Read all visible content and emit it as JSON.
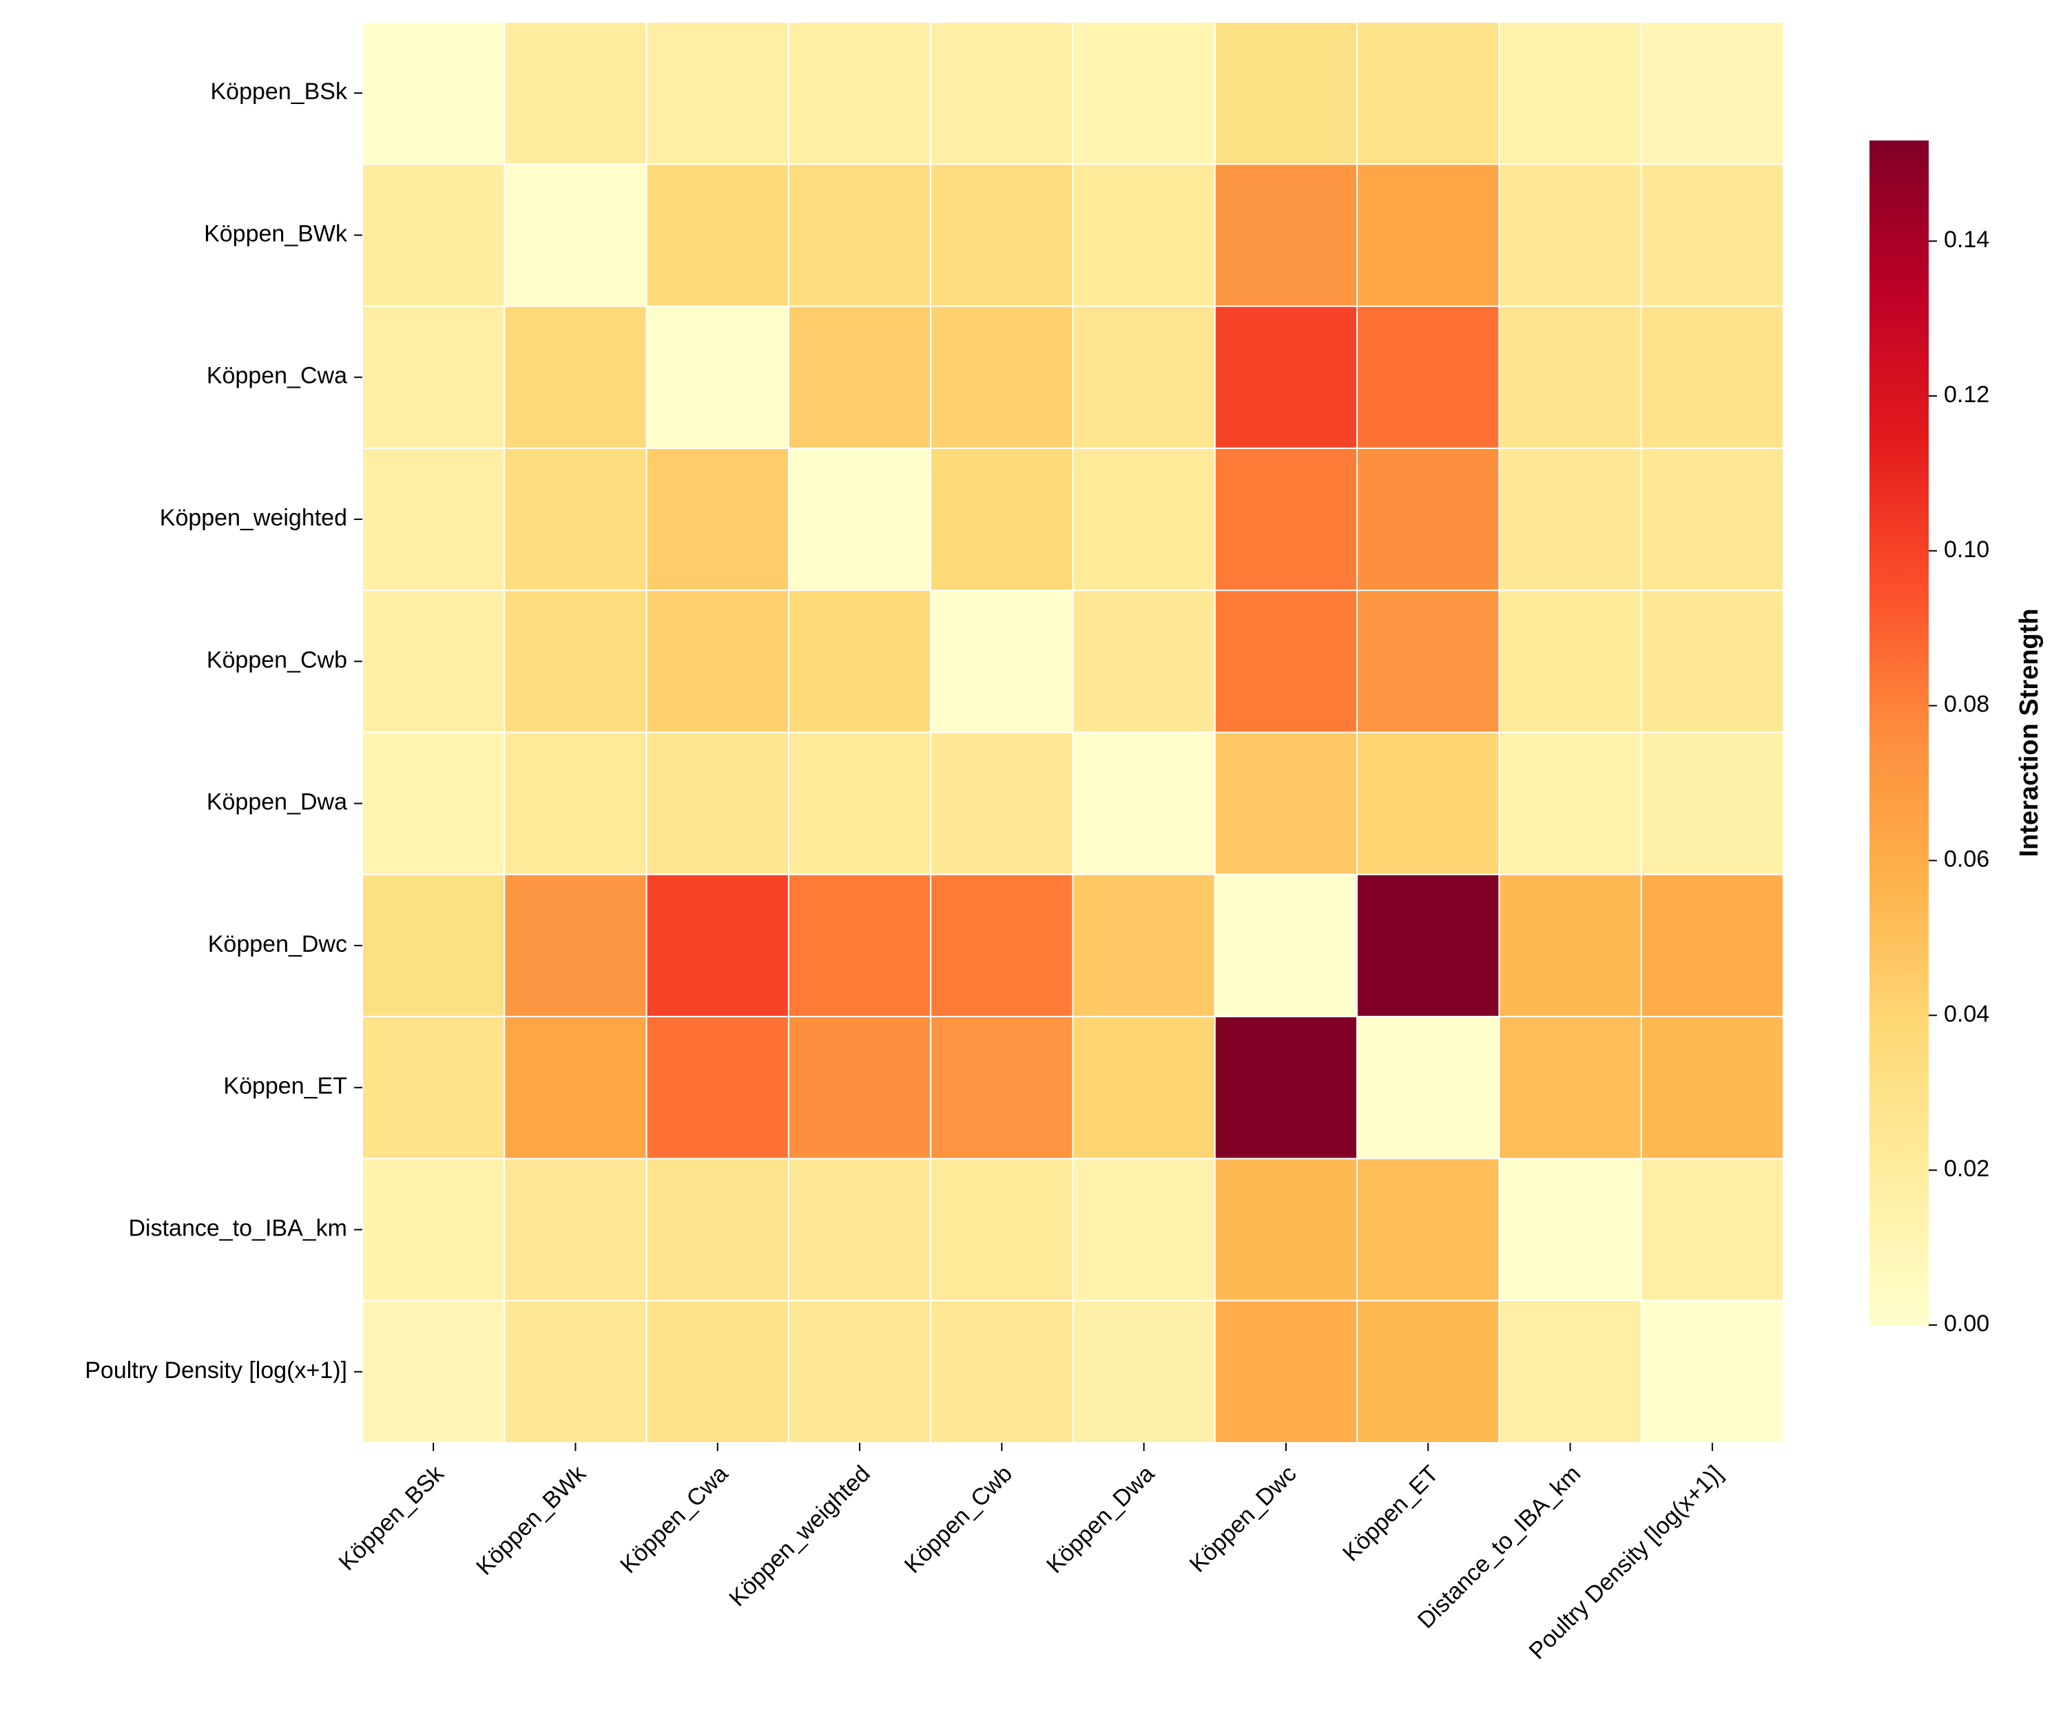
{
  "chart_data": {
    "type": "heatmap",
    "title": "",
    "xlabel": "",
    "ylabel": "",
    "x_categories": [
      "Köppen_BSk",
      "Köppen_BWk",
      "Köppen_Cwa",
      "Köppen_weighted",
      "Köppen_Cwb",
      "Köppen_Dwa",
      "Köppen_Dwc",
      "Köppen_ET",
      "Distance_to_IBA_km",
      "Poultry Density [log(x+1)]"
    ],
    "y_categories": [
      "Köppen_BSk",
      "Köppen_BWk",
      "Köppen_Cwa",
      "Köppen_weighted",
      "Köppen_Cwb",
      "Köppen_Dwa",
      "Köppen_Dwc",
      "Köppen_ET",
      "Distance_to_IBA_km",
      "Poultry Density [log(x+1)]"
    ],
    "values": [
      [
        0.0,
        0.02,
        0.018,
        0.017,
        0.017,
        0.012,
        0.032,
        0.029,
        0.014,
        0.01
      ],
      [
        0.02,
        0.0,
        0.038,
        0.034,
        0.034,
        0.022,
        0.072,
        0.064,
        0.024,
        0.024
      ],
      [
        0.018,
        0.038,
        0.0,
        0.044,
        0.042,
        0.027,
        0.1,
        0.085,
        0.028,
        0.029
      ],
      [
        0.017,
        0.034,
        0.044,
        0.0,
        0.037,
        0.022,
        0.082,
        0.075,
        0.024,
        0.025
      ],
      [
        0.017,
        0.034,
        0.042,
        0.037,
        0.0,
        0.024,
        0.082,
        0.073,
        0.022,
        0.024
      ],
      [
        0.012,
        0.022,
        0.027,
        0.022,
        0.024,
        0.0,
        0.046,
        0.04,
        0.014,
        0.016
      ],
      [
        0.032,
        0.072,
        0.1,
        0.082,
        0.082,
        0.046,
        0.0,
        0.153,
        0.054,
        0.06
      ],
      [
        0.029,
        0.064,
        0.085,
        0.075,
        0.073,
        0.04,
        0.153,
        0.0,
        0.052,
        0.054
      ],
      [
        0.014,
        0.024,
        0.028,
        0.024,
        0.022,
        0.014,
        0.054,
        0.052,
        0.0,
        0.018
      ],
      [
        0.01,
        0.024,
        0.029,
        0.025,
        0.024,
        0.016,
        0.06,
        0.054,
        0.018,
        0.0
      ]
    ],
    "vmin": 0.0,
    "vmax": 0.153,
    "colormap": "YlOrRd",
    "colorbar": {
      "label": "Interaction Strength",
      "ticks": [
        0.0,
        0.02,
        0.04,
        0.06,
        0.08,
        0.1,
        0.12,
        0.14
      ],
      "tick_labels": [
        "0.00",
        "0.02",
        "0.04",
        "0.06",
        "0.08",
        "0.10",
        "0.12",
        "0.14"
      ]
    },
    "colormap_stops": [
      "#ffffcc",
      "#ffeda0",
      "#fed976",
      "#feb24c",
      "#fd8d3c",
      "#fc4e2a",
      "#e31a1c",
      "#bd0026",
      "#800026"
    ],
    "cell_border_color": "#ffffff",
    "grid": false
  }
}
